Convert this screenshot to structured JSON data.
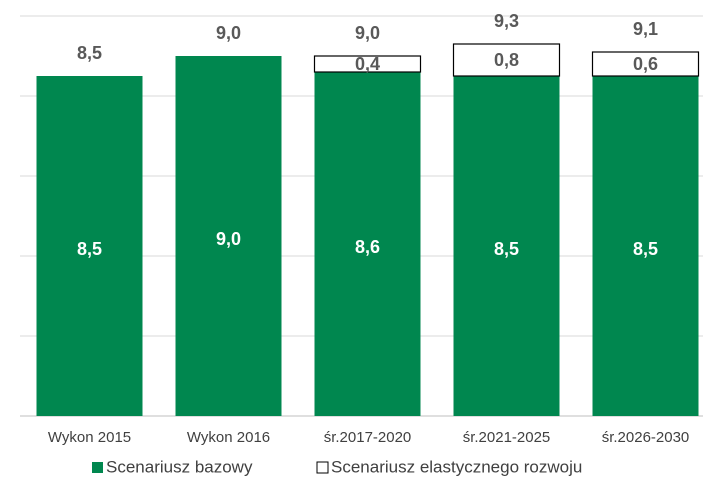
{
  "chart_data": {
    "type": "stacked_bar",
    "categories": [
      "Wykon 2015",
      "Wykon 2016",
      "śr.2017-2020",
      "śr.2021-2025",
      "śr.2026-2030"
    ],
    "series": [
      {
        "name": "Scenariusz bazowy",
        "color": "#00874f",
        "values": [
          8.5,
          9.0,
          8.6,
          8.5,
          8.5
        ],
        "value_labels": [
          "8,5",
          "9,0",
          "8,6",
          "8,5",
          "8,5"
        ]
      },
      {
        "name": "Scenariusz elastycznego rozwoju",
        "color": "#ffffff",
        "values": [
          null,
          null,
          0.4,
          0.8,
          0.6
        ],
        "value_labels": [
          null,
          null,
          "0,4",
          "0,8",
          "0,6"
        ]
      }
    ],
    "totals": [
      8.5,
      9.0,
      9.0,
      9.3,
      9.1
    ],
    "total_labels": [
      "8,5",
      "9,0",
      "9,0",
      "9,3",
      "9,1"
    ],
    "ylim": [
      0,
      10
    ],
    "yticks": [
      0,
      2,
      4,
      6,
      8,
      10
    ],
    "grid": true,
    "legend": "bottom"
  }
}
